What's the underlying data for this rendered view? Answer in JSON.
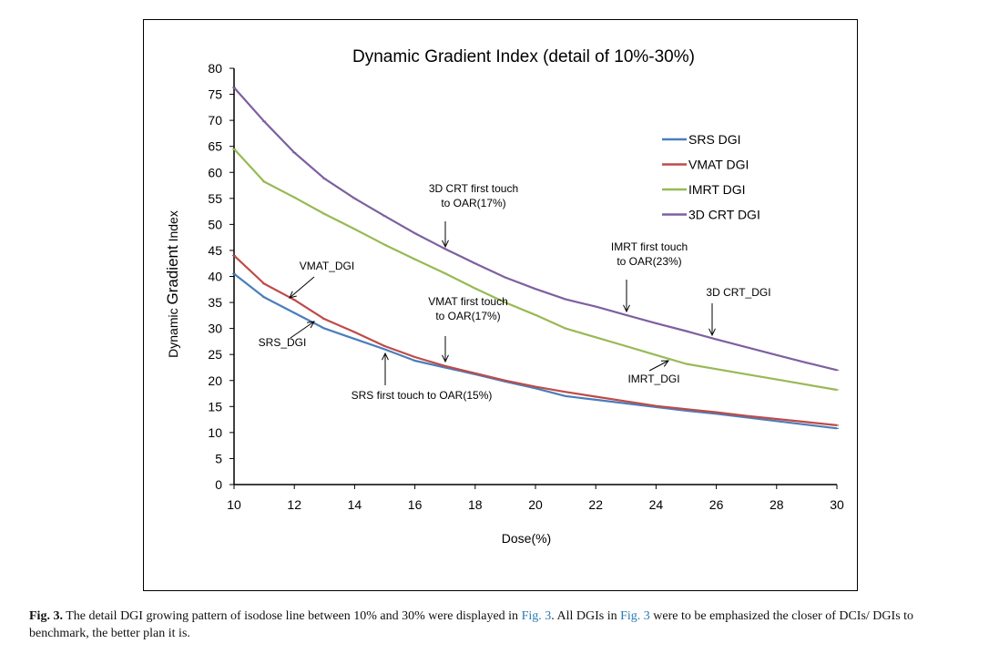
{
  "chart_data": {
    "type": "line",
    "title": "Dynamic Gradient Index (detail of 10%-30%)",
    "xlabel": "Dose(%)",
    "ylabel_prefix": "Dynamic ",
    "ylabel_main": "Gradient",
    "ylabel_suffix": " Index",
    "xlim": [
      10,
      30
    ],
    "ylim": [
      0,
      80
    ],
    "x_ticks": [
      10,
      12,
      14,
      16,
      18,
      20,
      22,
      24,
      26,
      28,
      30
    ],
    "y_ticks": [
      0,
      5,
      10,
      15,
      20,
      25,
      30,
      35,
      40,
      45,
      50,
      55,
      60,
      65,
      70,
      75,
      80
    ],
    "grid": false,
    "legend_position": "top-right",
    "x": [
      10,
      11,
      12,
      13,
      14,
      15,
      16,
      17,
      18,
      19,
      20,
      21,
      22,
      23,
      24,
      25,
      26,
      27,
      28,
      29,
      30
    ],
    "series": [
      {
        "name": "SRS DGI",
        "color": "#4a7ebb",
        "values": [
          40.5,
          36.0,
          33.0,
          30.0,
          28.0,
          26.0,
          23.8,
          22.5,
          21.2,
          19.8,
          18.5,
          17.0,
          16.3,
          15.6,
          14.9,
          14.2,
          13.6,
          12.9,
          12.2,
          11.5,
          10.8
        ]
      },
      {
        "name": "VMAT DGI",
        "color": "#be4b48",
        "values": [
          44.0,
          38.6,
          35.5,
          31.8,
          29.3,
          26.6,
          24.5,
          22.8,
          21.4,
          20.0,
          18.8,
          17.8,
          16.9,
          16.0,
          15.1,
          14.5,
          13.9,
          13.2,
          12.6,
          12.0,
          11.4
        ]
      },
      {
        "name": "IMRT DGI",
        "color": "#98b954",
        "values": [
          64.5,
          58.2,
          55.2,
          52.0,
          49.1,
          46.1,
          43.3,
          40.6,
          37.7,
          35.0,
          32.6,
          30.0,
          28.3,
          26.6,
          24.9,
          23.2,
          22.2,
          21.2,
          20.2,
          19.2,
          18.2
        ]
      },
      {
        "name": "3D CRT DGI",
        "color": "#7d60a0",
        "values": [
          76.3,
          69.8,
          63.8,
          58.8,
          55.0,
          51.6,
          48.3,
          45.3,
          42.5,
          39.8,
          37.6,
          35.6,
          34.2,
          32.6,
          31.0,
          29.5,
          27.9,
          26.4,
          24.9,
          23.4,
          22.0
        ]
      }
    ],
    "annotations": [
      {
        "lines": [
          "VMAT_DGI"
        ]
      },
      {
        "lines": [
          "SRS_DGI"
        ]
      },
      {
        "lines": [
          "SRS first touch to OAR(15%)"
        ]
      },
      {
        "lines": [
          "VMAT first touch",
          "to OAR(17%)"
        ]
      },
      {
        "lines": [
          "3D CRT first touch",
          "to OAR(17%)"
        ]
      },
      {
        "lines": [
          "IMRT first touch",
          "to OAR(23%)"
        ]
      },
      {
        "lines": [
          "3D CRT_DGI"
        ]
      },
      {
        "lines": [
          "IMRT_DGI"
        ]
      }
    ]
  },
  "caption": {
    "label": "Fig. 3.",
    "part1": " The detail DGI growing pattern of isodose line between 10% and 30% were displayed in ",
    "ref1": "Fig. 3",
    "part2": ". All DGIs in ",
    "ref2": "Fig. 3",
    "part3": " were to be emphasized the closer of DCIs/ DGIs to benchmark, the better plan it is."
  }
}
